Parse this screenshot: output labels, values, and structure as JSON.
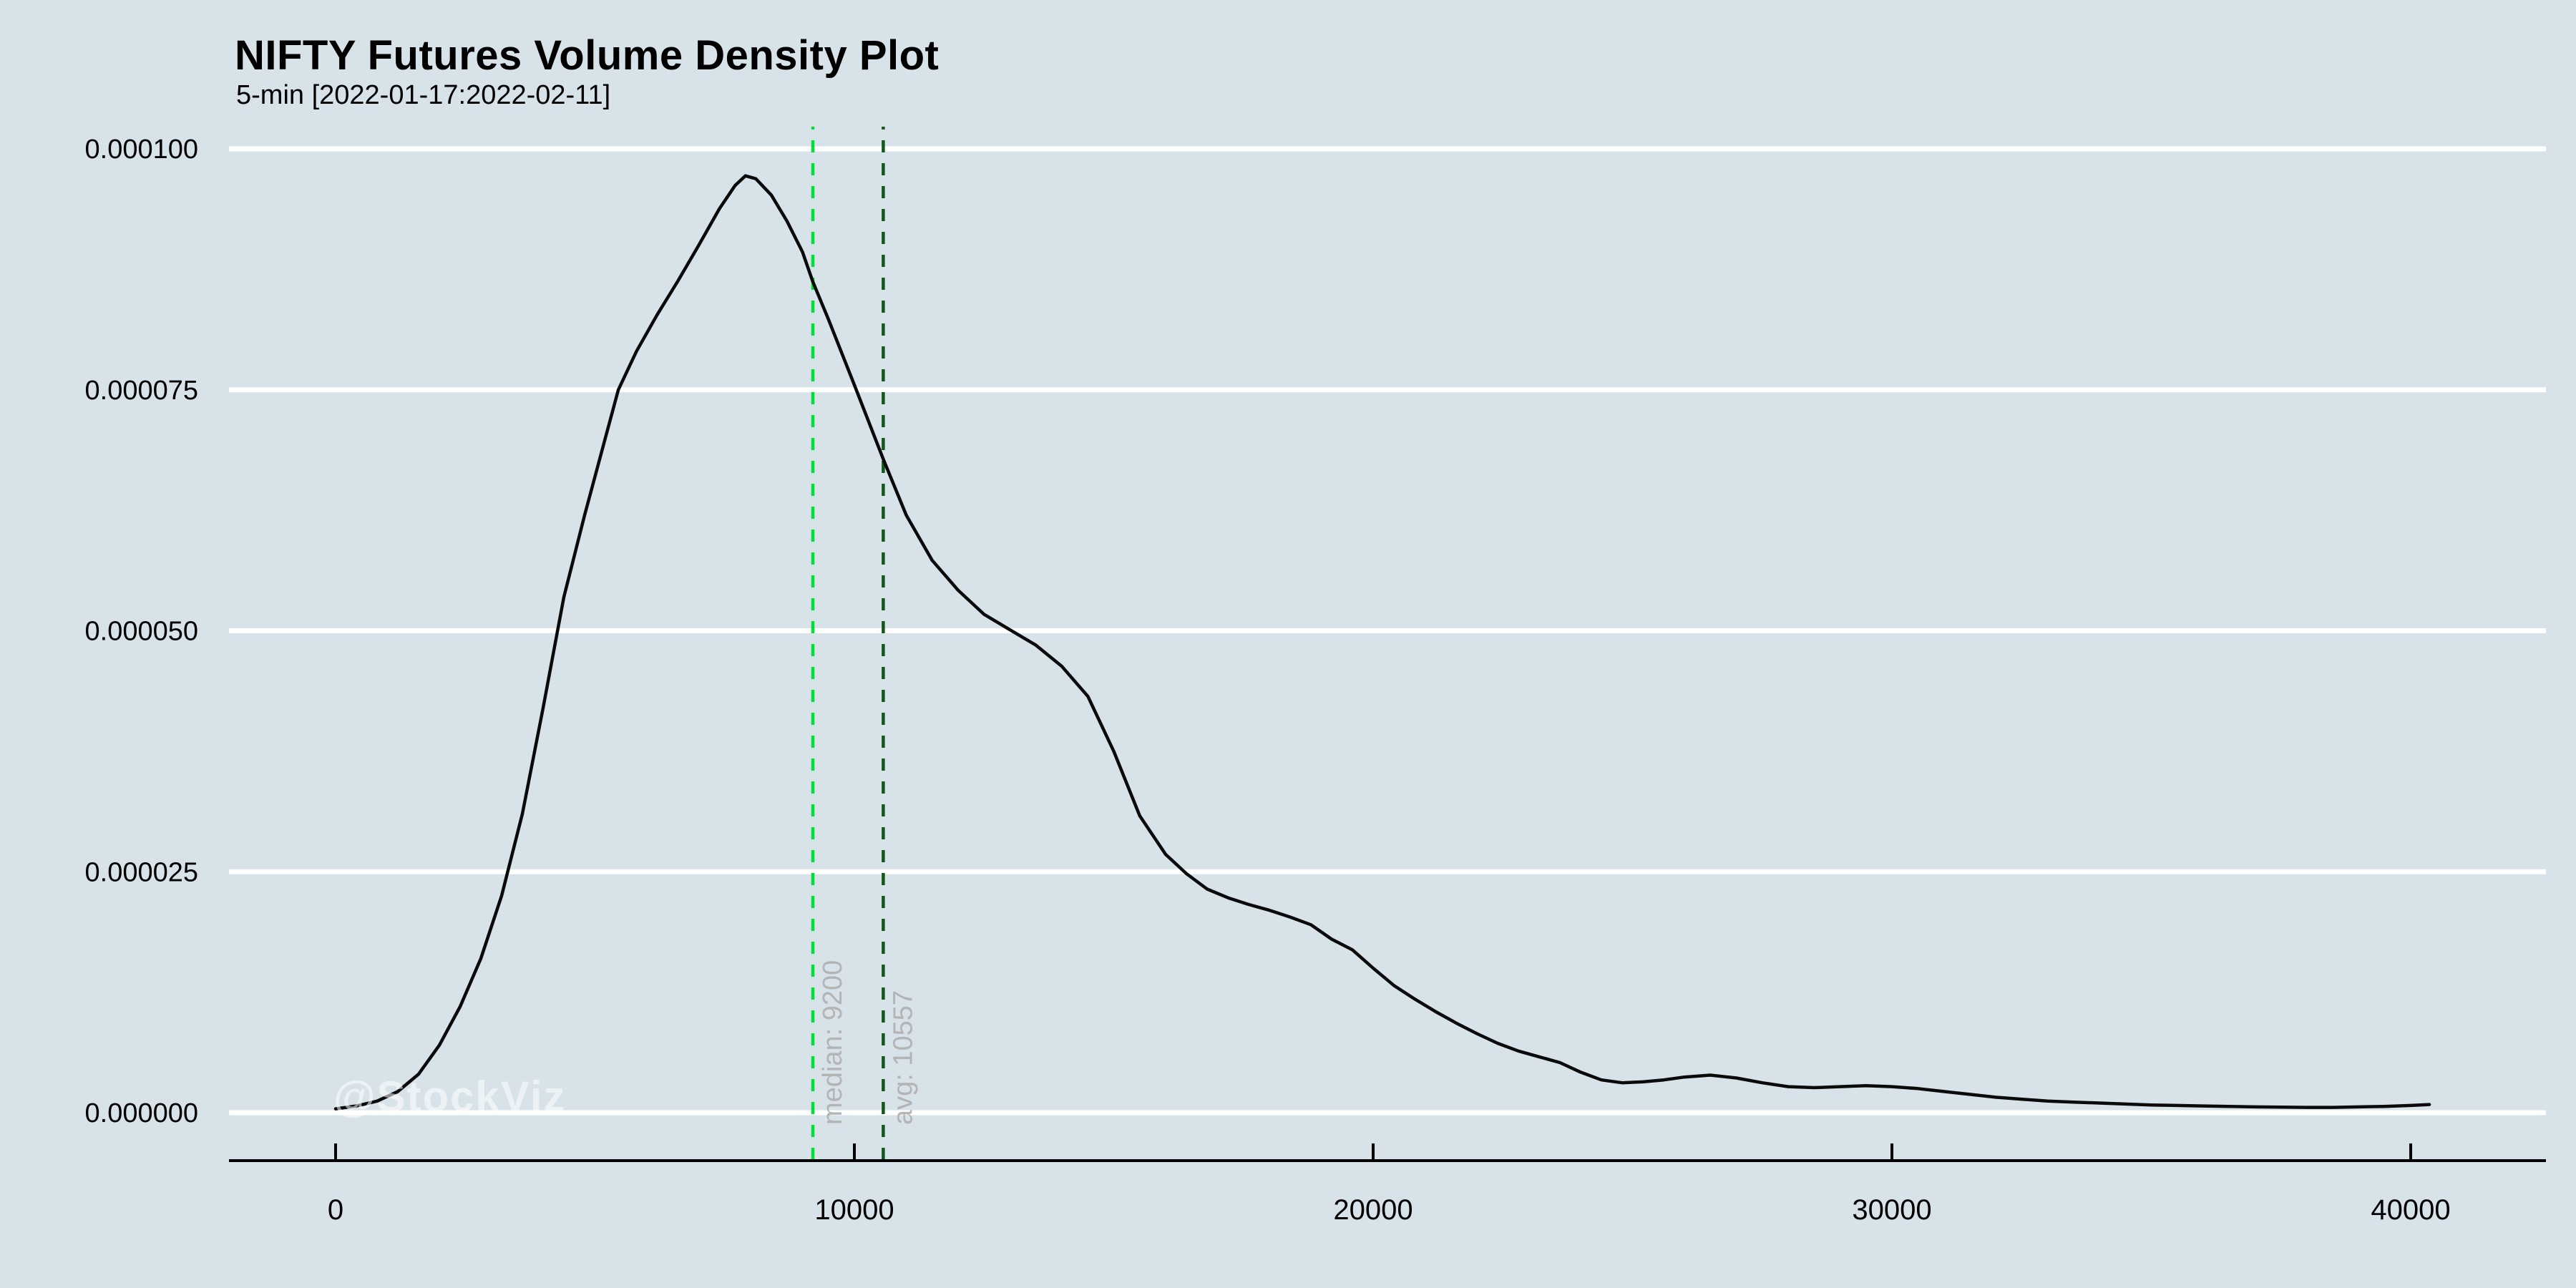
{
  "header": {
    "title": "NIFTY Futures Volume Density Plot",
    "subtitle": "5-min [2022-01-17:2022-02-11]"
  },
  "watermark": {
    "text": "@StockViz"
  },
  "chart_data": {
    "type": "line",
    "title": "NIFTY Futures Volume Density Plot",
    "subtitle": "5-min [2022-01-17:2022-02-11]",
    "xlabel": "",
    "ylabel": "",
    "xlim": [
      0,
      40360
    ],
    "ylim": [
      0,
      0.0001
    ],
    "grid": "horizontal-white",
    "legend": "none",
    "x_tick_values": [
      0,
      10000,
      20000,
      30000,
      40000
    ],
    "x_tick_labels": [
      "0",
      "10000",
      "20000",
      "30000",
      "40000"
    ],
    "y_tick_values_e6": [
      0,
      25,
      50,
      75,
      100
    ],
    "y_tick_labels": [
      "0.000000",
      "0.000025",
      "0.000050",
      "0.000075",
      "0.000100"
    ],
    "series": [
      {
        "name": "volume-density",
        "points_unit": "[volume, density x 1e-6]",
        "points": [
          [
            0,
            0.4
          ],
          [
            400,
            0.7
          ],
          [
            800,
            1.2
          ],
          [
            1200,
            2.2
          ],
          [
            1600,
            4.0
          ],
          [
            2000,
            7.0
          ],
          [
            2400,
            11.0
          ],
          [
            2800,
            16.0
          ],
          [
            3200,
            22.5
          ],
          [
            3600,
            31.0
          ],
          [
            4000,
            42.0
          ],
          [
            4400,
            53.5
          ],
          [
            4800,
            62.0
          ],
          [
            5200,
            70.0
          ],
          [
            5450,
            75.0
          ],
          [
            5800,
            79.0
          ],
          [
            6200,
            82.8
          ],
          [
            6600,
            86.3
          ],
          [
            7000,
            90.0
          ],
          [
            7400,
            93.8
          ],
          [
            7700,
            96.2
          ],
          [
            7900,
            97.2
          ],
          [
            8100,
            96.9
          ],
          [
            8400,
            95.2
          ],
          [
            8700,
            92.5
          ],
          [
            9000,
            89.3
          ],
          [
            9200,
            86.2
          ],
          [
            9500,
            82.3
          ],
          [
            10000,
            75.5
          ],
          [
            10557,
            67.8
          ],
          [
            11000,
            62.0
          ],
          [
            11500,
            57.3
          ],
          [
            12000,
            54.2
          ],
          [
            12500,
            51.7
          ],
          [
            13000,
            50.1
          ],
          [
            13500,
            48.5
          ],
          [
            14000,
            46.3
          ],
          [
            14500,
            43.2
          ],
          [
            15000,
            37.5
          ],
          [
            15500,
            30.8
          ],
          [
            16000,
            26.8
          ],
          [
            16400,
            24.8
          ],
          [
            16800,
            23.2
          ],
          [
            17200,
            22.3
          ],
          [
            17600,
            21.6
          ],
          [
            18000,
            21.0
          ],
          [
            18400,
            20.3
          ],
          [
            18800,
            19.5
          ],
          [
            19200,
            18.0
          ],
          [
            19600,
            16.9
          ],
          [
            20000,
            15.0
          ],
          [
            20400,
            13.2
          ],
          [
            20800,
            11.8
          ],
          [
            21200,
            10.5
          ],
          [
            21600,
            9.3
          ],
          [
            22000,
            8.2
          ],
          [
            22400,
            7.2
          ],
          [
            22800,
            6.4
          ],
          [
            23200,
            5.8
          ],
          [
            23600,
            5.2
          ],
          [
            24000,
            4.2
          ],
          [
            24400,
            3.4
          ],
          [
            24800,
            3.1
          ],
          [
            25200,
            3.2
          ],
          [
            25600,
            3.4
          ],
          [
            26000,
            3.7
          ],
          [
            26500,
            3.9
          ],
          [
            27000,
            3.6
          ],
          [
            27500,
            3.1
          ],
          [
            28000,
            2.7
          ],
          [
            28500,
            2.6
          ],
          [
            29000,
            2.7
          ],
          [
            29500,
            2.8
          ],
          [
            30000,
            2.7
          ],
          [
            30500,
            2.5
          ],
          [
            31000,
            2.2
          ],
          [
            31500,
            1.9
          ],
          [
            32000,
            1.6
          ],
          [
            32500,
            1.4
          ],
          [
            33000,
            1.2
          ],
          [
            33500,
            1.1
          ],
          [
            34000,
            1.0
          ],
          [
            34500,
            0.9
          ],
          [
            35000,
            0.8
          ],
          [
            35500,
            0.75
          ],
          [
            36000,
            0.7
          ],
          [
            36500,
            0.65
          ],
          [
            37000,
            0.6
          ],
          [
            37500,
            0.58
          ],
          [
            38000,
            0.55
          ],
          [
            38500,
            0.55
          ],
          [
            39000,
            0.6
          ],
          [
            39500,
            0.65
          ],
          [
            40000,
            0.75
          ],
          [
            40360,
            0.85
          ]
        ]
      }
    ],
    "annotations": [
      {
        "name": "median-line",
        "label": "median: 9200",
        "value": 9200,
        "style": "dashed",
        "color": "#00de37"
      },
      {
        "name": "avg-line",
        "label": "avg: 10557",
        "value": 10557,
        "style": "dashed",
        "color": "#14571b"
      }
    ],
    "colors": {
      "background": "#d7e2e9",
      "gridline": "#ffffff",
      "axis": "#000000",
      "curve": "#0a0a0a",
      "annotation_label": "#b4b4b4",
      "watermark": "rgba(255,255,255,0.55)"
    }
  }
}
